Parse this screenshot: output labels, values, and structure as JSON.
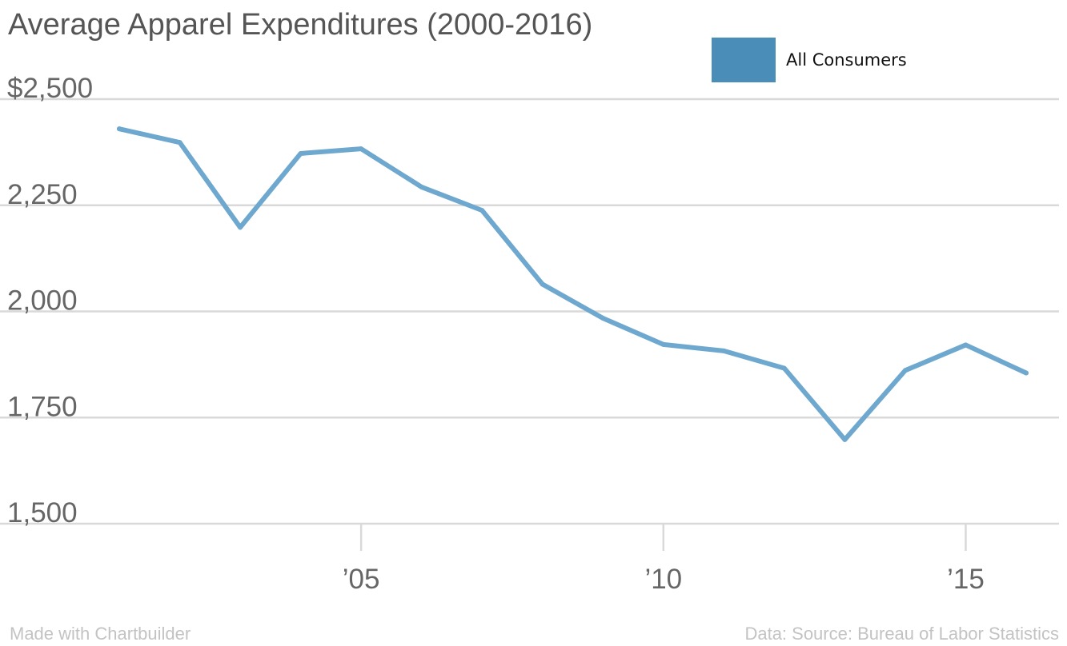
{
  "chart_data": {
    "type": "line",
    "title": "Average Apparel Expenditures (2000-2016)",
    "xlabel": "",
    "ylabel": "",
    "x": [
      2001,
      2002,
      2003,
      2004,
      2005,
      2006,
      2007,
      2008,
      2009,
      2010,
      2011,
      2012,
      2013,
      2014,
      2015,
      2016
    ],
    "series": [
      {
        "name": "All Consumers",
        "color": "#6fa8cf",
        "values": [
          2430,
          2398,
          2198,
          2372,
          2383,
          2293,
          2238,
          2064,
          1984,
          1922,
          1907,
          1866,
          1698,
          1861,
          1921,
          1855
        ]
      }
    ],
    "ylim": [
      1500,
      2500
    ],
    "xlim": [
      2001,
      2016
    ],
    "y_ticks": [
      {
        "value": 2500,
        "label": "$2,500"
      },
      {
        "value": 2250,
        "label": "2,250"
      },
      {
        "value": 2000,
        "label": "2,000"
      },
      {
        "value": 1750,
        "label": "1,750"
      },
      {
        "value": 1500,
        "label": "1,500"
      }
    ],
    "x_ticks": [
      {
        "value": 2005,
        "label": "’05"
      },
      {
        "value": 2010,
        "label": "’10"
      },
      {
        "value": 2015,
        "label": "’15"
      }
    ],
    "grid": true,
    "legend_position": "top-right",
    "legend_swatch_color": "#4a8db8"
  },
  "footer": {
    "left": "Made with Chartbuilder",
    "right": "Data: Source: Bureau of Labor Statistics"
  }
}
